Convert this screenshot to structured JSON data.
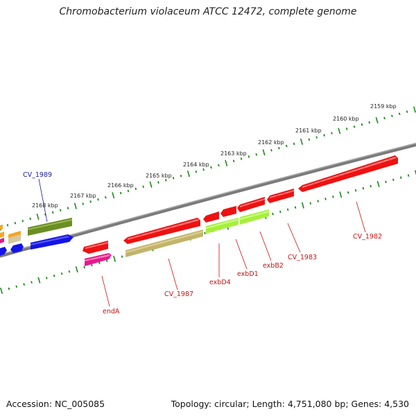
{
  "title": "Chromobacterium violaceum ATCC 12472, complete genome",
  "footer": {
    "accession": "Accession: NC_005085",
    "summary": "Topology: circular; Length: 4,751,080 bp; Genes: 4,530"
  },
  "kbp_labels": [
    "2159 kbp",
    "2160 kbp",
    "2161 kbp",
    "2162 kbp",
    "2163 kbp",
    "2164 kbp",
    "2165 kbp",
    "2166 kbp",
    "2167 kbp",
    "2168 kbp"
  ],
  "gene_labels": [
    "CV_1989",
    "endA",
    "CV_1987",
    "exbD4",
    "exbD1",
    "exbB2",
    "CV_1983",
    "CV_1982"
  ],
  "colors": {
    "cds_red": "#ee1111",
    "olive": "#6b8e23",
    "khaki": "#c2b46a",
    "lime": "#a6f03a",
    "blue": "#1414e6",
    "magenta": "#e6198c",
    "orange": "#f5a623",
    "backbone": "#808080",
    "tick_green": "#1a8a1a",
    "label_red": "#cc1111",
    "label_blue": "#1a1aa8"
  }
}
